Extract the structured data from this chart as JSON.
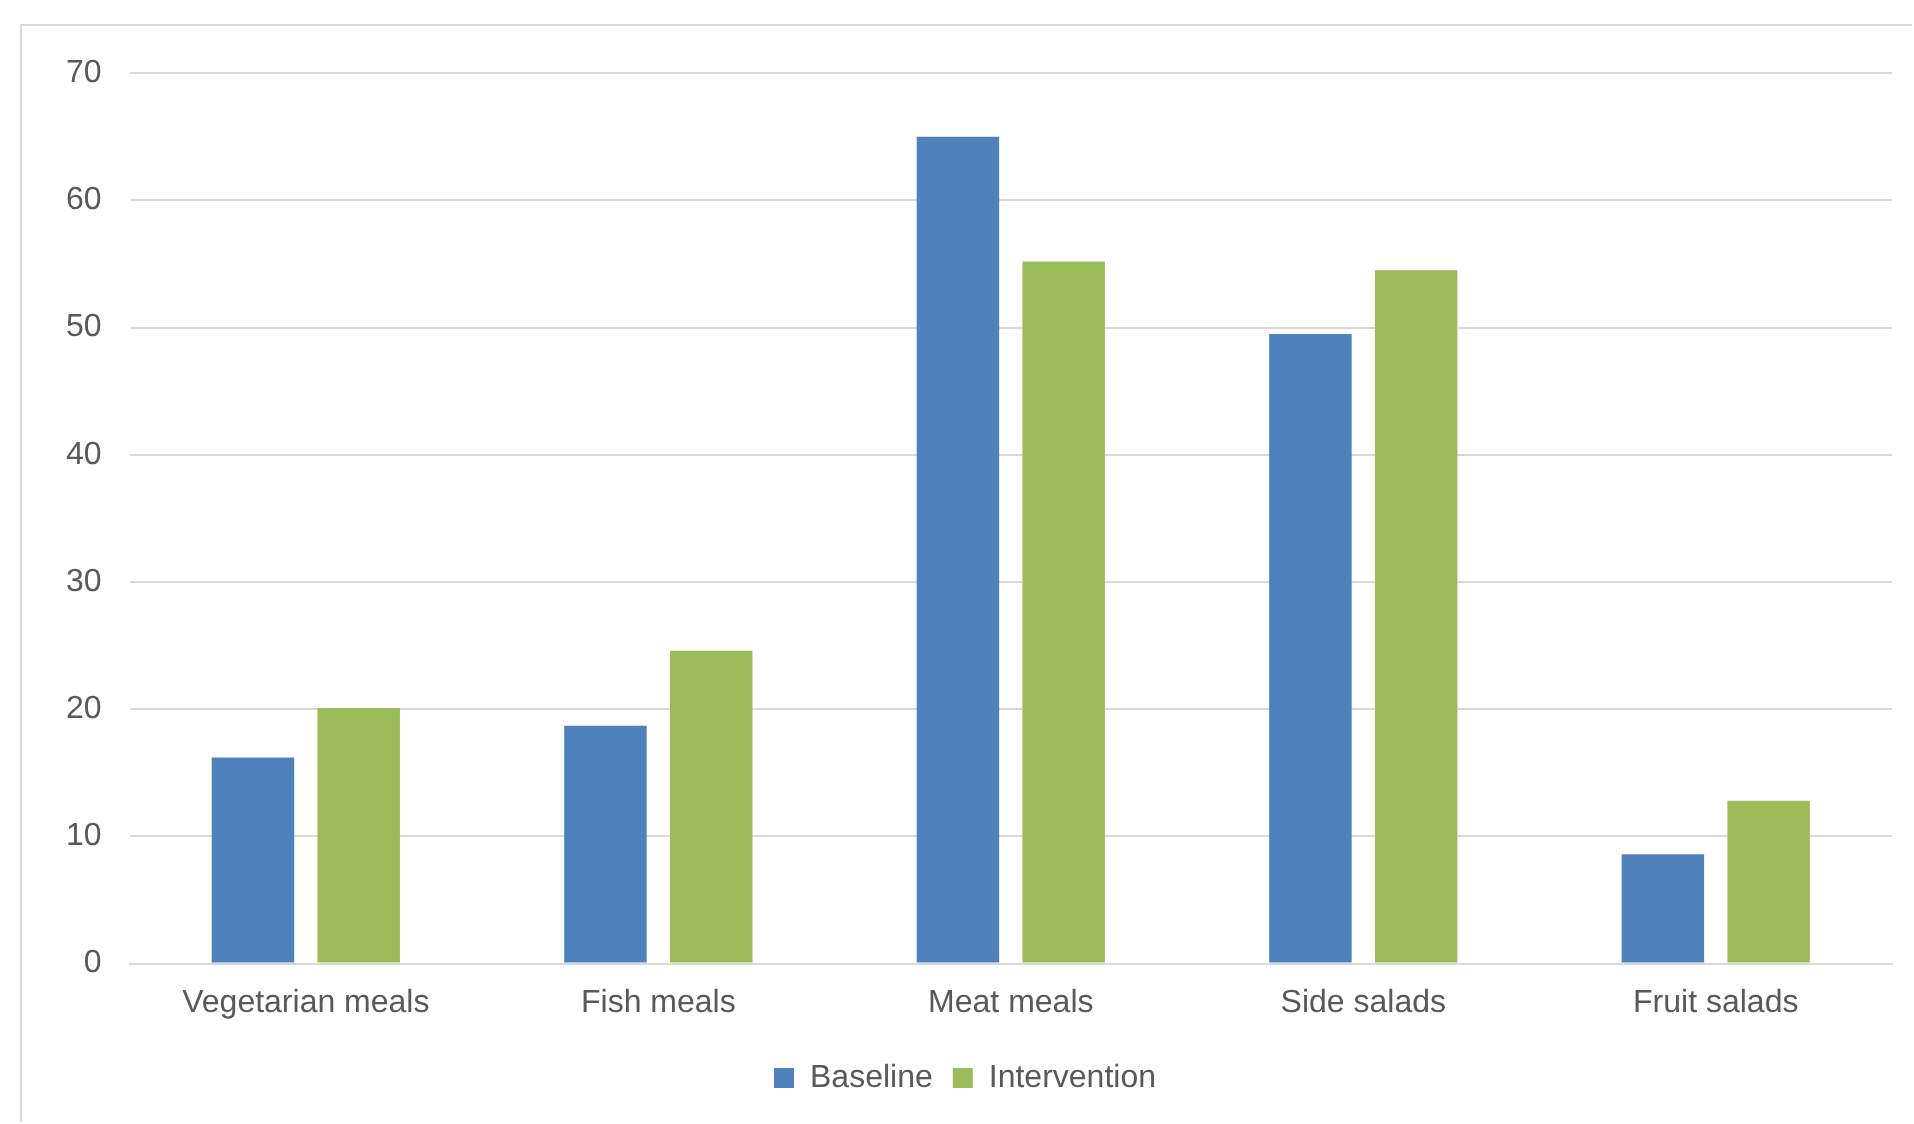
{
  "chart_data": {
    "type": "bar",
    "categories": [
      "Vegetarian meals",
      "Fish meals",
      "Meat meals",
      "Side salads",
      "Fruit salads"
    ],
    "series": [
      {
        "name": "Baseline",
        "color": "#4f81bd",
        "values": [
          16.2,
          18.7,
          65.0,
          49.5,
          8.6
        ]
      },
      {
        "name": "Intervention",
        "color": "#9bbb59",
        "values": [
          20.1,
          24.6,
          55.2,
          54.5,
          12.8
        ]
      }
    ],
    "ylim": [
      0,
      70
    ],
    "yticks": [
      0,
      10,
      20,
      30,
      40,
      50,
      60,
      70
    ],
    "grid": "y",
    "legend": "bottom"
  }
}
